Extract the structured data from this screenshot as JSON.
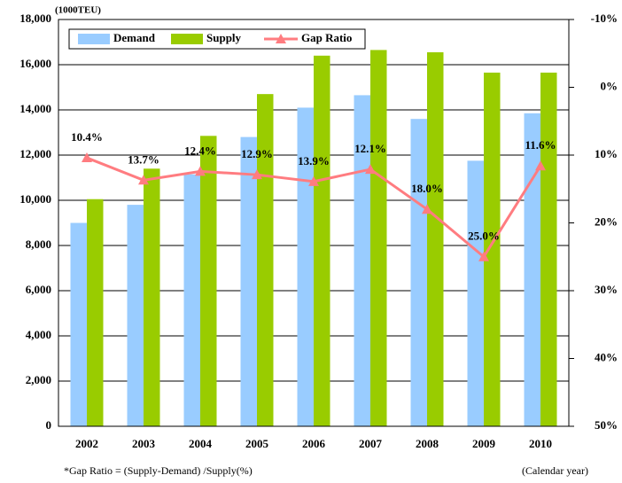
{
  "chart_data": {
    "type": "bar",
    "unit_label": "(1000TEU)",
    "footnote": "*Gap Ratio = (Supply-Demand) /Supply(%)",
    "x_label": "(Calendar year)",
    "categories": [
      "2002",
      "2003",
      "2004",
      "2005",
      "2006",
      "2007",
      "2008",
      "2009",
      "2010"
    ],
    "series": [
      {
        "name": "Demand",
        "color": "#99ccff",
        "values": [
          9000,
          9800,
          11150,
          12800,
          14100,
          14650,
          13600,
          11750,
          13850
        ]
      },
      {
        "name": "Supply",
        "color": "#99cc00",
        "values": [
          10050,
          11400,
          12850,
          14700,
          16400,
          16650,
          16550,
          15650,
          15650
        ]
      },
      {
        "name": "Gap Ratio",
        "color": "#ff7c80",
        "type": "line",
        "axis": "y2",
        "values": [
          10.4,
          13.7,
          12.4,
          12.9,
          13.9,
          12.1,
          18.0,
          25.0,
          11.6
        ],
        "value_labels": [
          "10.4%",
          "13.7%",
          "12.4%",
          "12.9%",
          "13.9%",
          "12.1%",
          "18.0%",
          "25.0%",
          "11.6%"
        ]
      }
    ],
    "ylim": [
      0,
      18000
    ],
    "yticks": [
      0,
      {
        "value": 2000,
        "label": "2,000"
      },
      {
        "value": 4000,
        "label": "4,000"
      },
      {
        "value": 6000,
        "label": "6,000"
      },
      {
        "value": 8000,
        "label": "8,000"
      },
      {
        "value": 10000,
        "label": "10,000"
      },
      {
        "value": 12000,
        "label": "12,000"
      },
      {
        "value": 14000,
        "label": "14,000"
      },
      {
        "value": 16000,
        "label": "16,000"
      },
      {
        "value": 18000,
        "label": "18,000"
      }
    ],
    "y2lim": [
      50,
      -10
    ],
    "y2ticks": [
      {
        "value": -10,
        "label": "-10%"
      },
      {
        "value": 0,
        "label": "0%"
      },
      {
        "value": 10,
        "label": "10%"
      },
      {
        "value": 20,
        "label": "20%"
      },
      {
        "value": 30,
        "label": "30%"
      },
      {
        "value": 40,
        "label": "40%"
      },
      {
        "value": 50,
        "label": "50%"
      }
    ],
    "grid": true,
    "legend": "top-left"
  }
}
